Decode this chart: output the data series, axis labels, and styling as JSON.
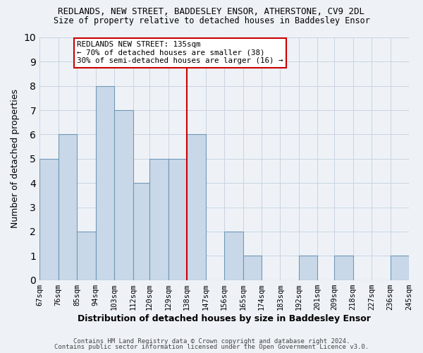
{
  "title": "REDLANDS, NEW STREET, BADDESLEY ENSOR, ATHERSTONE, CV9 2DL",
  "subtitle": "Size of property relative to detached houses in Baddesley Ensor",
  "xlabel": "Distribution of detached houses by size in Baddesley Ensor",
  "ylabel": "Number of detached properties",
  "bin_labels": [
    "67sqm",
    "76sqm",
    "85sqm",
    "94sqm",
    "103sqm",
    "112sqm",
    "120sqm",
    "129sqm",
    "138sqm",
    "147sqm",
    "156sqm",
    "165sqm",
    "174sqm",
    "183sqm",
    "192sqm",
    "201sqm",
    "209sqm",
    "218sqm",
    "227sqm",
    "236sqm",
    "245sqm"
  ],
  "bar_values": [
    5,
    6,
    2,
    8,
    7,
    4,
    5,
    5,
    6,
    0,
    2,
    1,
    0,
    0,
    1,
    0,
    1,
    0,
    0,
    1
  ],
  "bar_color": "#c8d8e8",
  "bar_edgecolor": "#7098b8",
  "bin_edges": [
    67,
    76,
    85,
    94,
    103,
    112,
    120,
    129,
    138,
    147,
    156,
    165,
    174,
    183,
    192,
    201,
    209,
    218,
    227,
    236,
    245
  ],
  "vline_x": 138,
  "vline_color": "#cc0000",
  "annotation_text": "REDLANDS NEW STREET: 135sqm\n← 70% of detached houses are smaller (38)\n30% of semi-detached houses are larger (16) →",
  "annotation_box_edgecolor": "#cc0000",
  "ylim": [
    0,
    10
  ],
  "yticks": [
    0,
    1,
    2,
    3,
    4,
    5,
    6,
    7,
    8,
    9,
    10
  ],
  "footer1": "Contains HM Land Registry data © Crown copyright and database right 2024.",
  "footer2": "Contains public sector information licensed under the Open Government Licence v3.0.",
  "grid_color": "#c8d4e0",
  "background_color": "#eef2f7"
}
